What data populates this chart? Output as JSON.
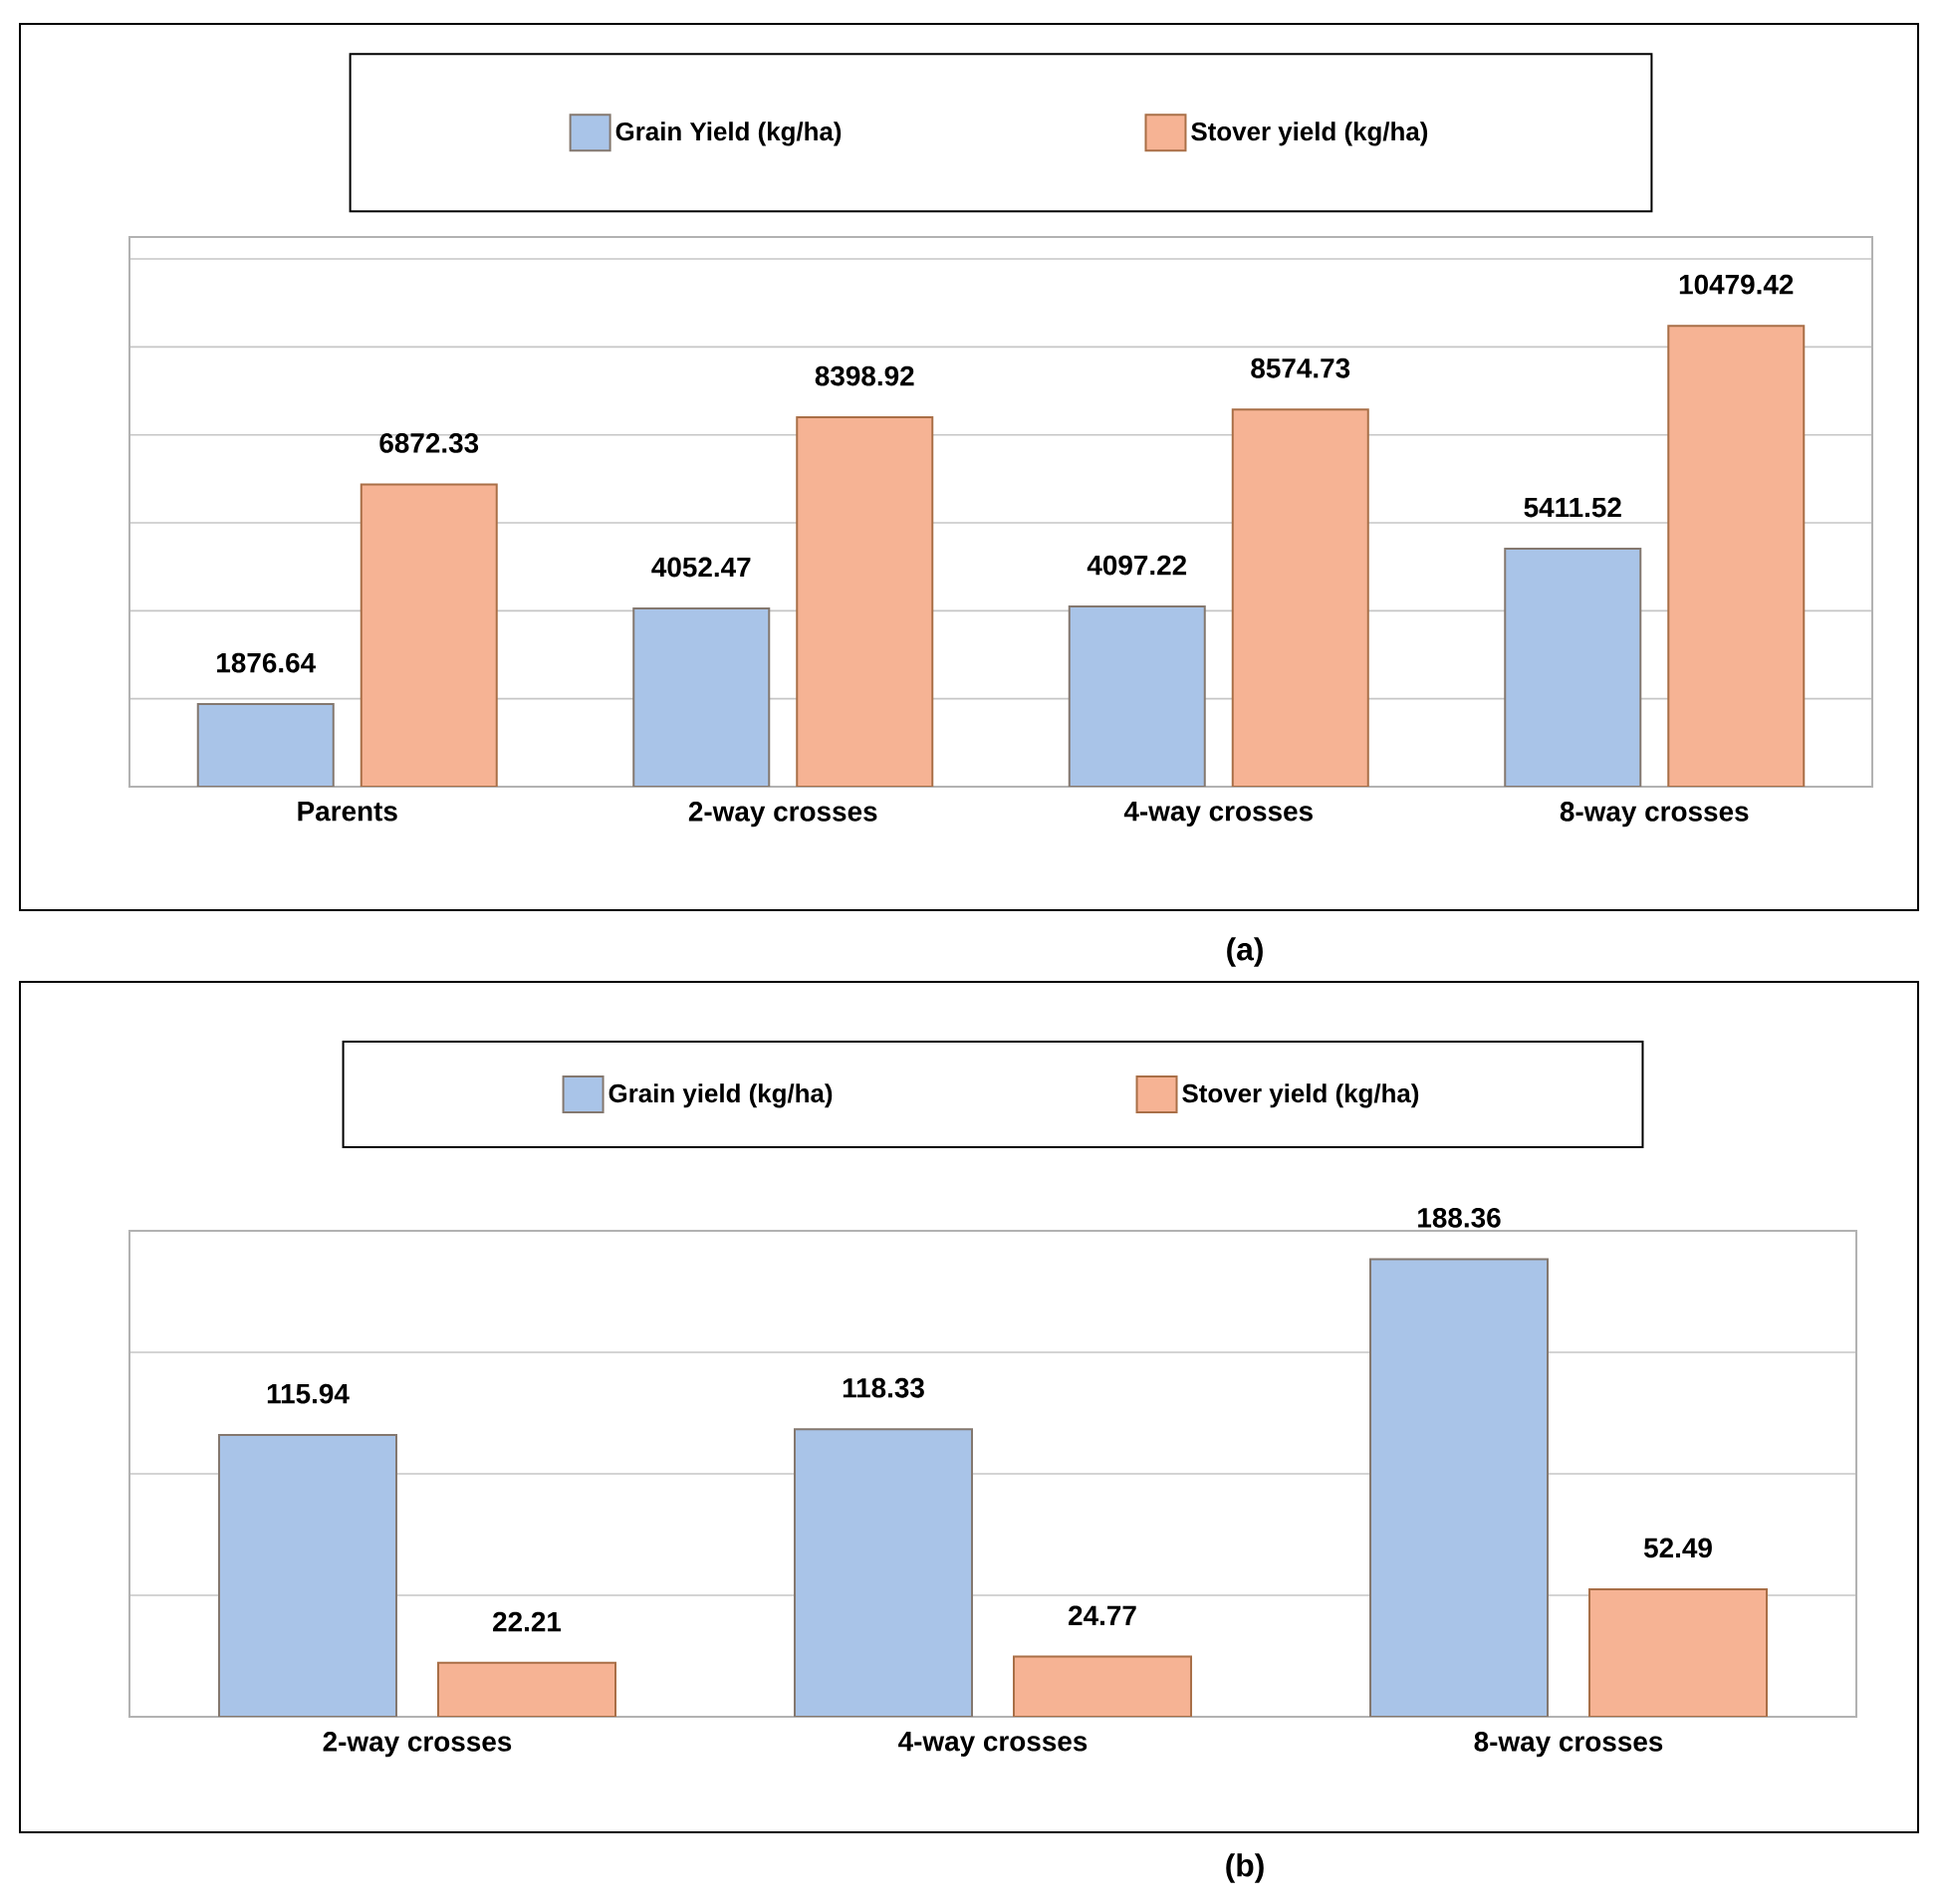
{
  "chart_data": [
    {
      "type": "bar",
      "categories": [
        "Parents",
        "2-way crosses",
        "4-way crosses",
        "8-way crosses"
      ],
      "series": [
        {
          "name": "Grain Yield (kg/ha)",
          "color": "#a9c4e8",
          "values": [
            1876.64,
            4052.47,
            4097.22,
            5411.52
          ]
        },
        {
          "name": "Stover yield (kg/ha)",
          "color": "#f6b394",
          "values": [
            6872.33,
            8398.92,
            8574.73,
            10479.42
          ]
        }
      ],
      "ylim": [
        0,
        12500
      ],
      "yticks": [
        0,
        2000,
        4000,
        6000,
        8000,
        10000,
        12000
      ],
      "tick_labels": "x",
      "grid": "y",
      "legend": "top",
      "data_labels": true,
      "annotations": [
        "(a)"
      ]
    },
    {
      "type": "bar",
      "categories": [
        "2-way crosses",
        "4-way crosses",
        "8-way crosses"
      ],
      "series": [
        {
          "name": "Grain yield (kg/ha)",
          "color": "#a9c4e8",
          "values": [
            115.94,
            118.33,
            188.36
          ]
        },
        {
          "name": "Stover yield (kg/ha)",
          "color": "#f6b394",
          "values": [
            22.21,
            24.77,
            52.49
          ]
        }
      ],
      "ylim": [
        0,
        200
      ],
      "yticks": [
        0,
        50,
        100,
        150,
        200
      ],
      "tick_labels": "x",
      "grid": "y",
      "legend": "top",
      "data_labels": true,
      "annotations": [
        "(b)"
      ]
    }
  ]
}
